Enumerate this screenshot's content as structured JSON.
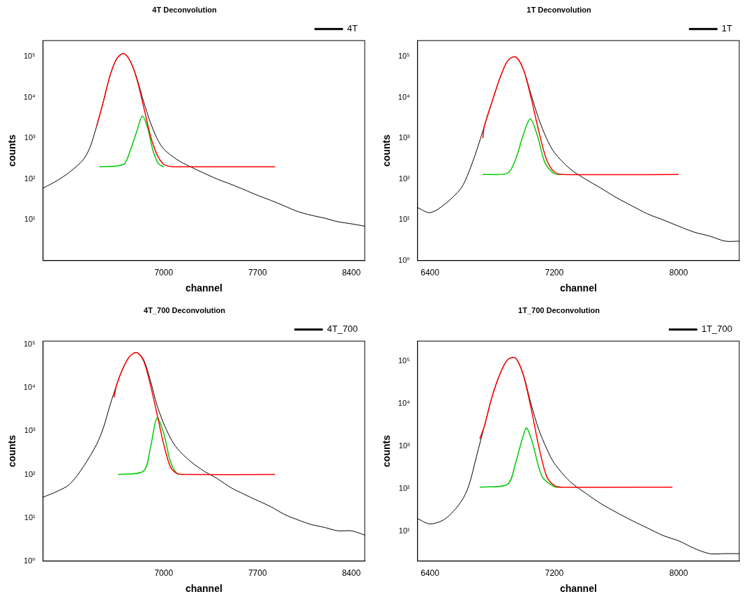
{
  "chart_data": [
    {
      "type": "line",
      "title": "4T Deconvolution",
      "x_label": "channel",
      "y_label": "counts",
      "xlim": [
        6100,
        8500
      ],
      "xticks": [
        7000,
        7700,
        8400
      ],
      "ylim": [
        1,
        250000
      ],
      "yticks": [
        {
          "value": 10,
          "label": "10¹"
        },
        {
          "value": 100,
          "label": "10²"
        },
        {
          "value": 1000,
          "label": "10³"
        },
        {
          "value": 10000,
          "label": "10⁴"
        },
        {
          "value": 100000,
          "label": "10⁵"
        }
      ],
      "log": "y",
      "grid": false,
      "legend": "top-right",
      "series": [
        {
          "name": "4T",
          "color": "#000000",
          "x": [
            6100,
            6200,
            6300,
            6400,
            6450,
            6500,
            6550,
            6600,
            6650,
            6700,
            6750,
            6800,
            6850,
            6900,
            6950,
            7000,
            7100,
            7200,
            7300,
            7400,
            7500,
            7600,
            7700,
            7800,
            7900,
            8000,
            8100,
            8200,
            8300,
            8400,
            8500
          ],
          "values": [
            60,
            90,
            150,
            300,
            600,
            2000,
            8000,
            35000,
            90000,
            120000,
            80000,
            30000,
            8000,
            2500,
            1000,
            550,
            300,
            200,
            140,
            100,
            75,
            55,
            40,
            30,
            22,
            16,
            13,
            11,
            9,
            8,
            7
          ]
        },
        {
          "color": "#ff0000",
          "x": [
            6500,
            6550,
            6600,
            6650,
            6700,
            6750,
            6800,
            6850,
            6900,
            6950,
            7000,
            7050,
            7100,
            7830
          ],
          "values": [
            2000,
            8000,
            35000,
            90000,
            120000,
            78000,
            28000,
            6000,
            1200,
            400,
            230,
            205,
            200,
            200
          ]
        },
        {
          "color": "#00cc00",
          "x": [
            6520,
            6700,
            6750,
            6800,
            6840,
            6880,
            6920,
            6960,
            7000
          ],
          "values": [
            200,
            230,
            500,
            1500,
            3500,
            1800,
            500,
            240,
            200
          ]
        }
      ]
    },
    {
      "type": "line",
      "title": "1T Deconvolution",
      "x_label": "channel",
      "y_label": "counts",
      "xlim": [
        6320,
        8390
      ],
      "xticks": [
        6400,
        7200,
        8000
      ],
      "ylim": [
        1,
        250000
      ],
      "yticks": [
        {
          "value": 1,
          "label": "10⁰"
        },
        {
          "value": 10,
          "label": "10¹"
        },
        {
          "value": 100,
          "label": "10²"
        },
        {
          "value": 1000,
          "label": "10³"
        },
        {
          "value": 10000,
          "label": "10⁴"
        },
        {
          "value": 100000,
          "label": "10⁵"
        }
      ],
      "log": "y",
      "grid": false,
      "legend": "top-right",
      "series": [
        {
          "name": "1T",
          "color": "#000000",
          "x": [
            6320,
            6400,
            6500,
            6600,
            6650,
            6700,
            6750,
            6800,
            6850,
            6900,
            6950,
            7000,
            7050,
            7100,
            7150,
            7200,
            7300,
            7400,
            7500,
            7600,
            7700,
            7800,
            7900,
            8000,
            8100,
            8200,
            8300,
            8390
          ],
          "values": [
            20,
            15,
            25,
            60,
            150,
            500,
            2000,
            8000,
            30000,
            80000,
            100000,
            50000,
            12000,
            3000,
            1000,
            450,
            180,
            100,
            60,
            35,
            22,
            14,
            10,
            7,
            5,
            4,
            3,
            3
          ]
        },
        {
          "color": "#ff0000",
          "x": [
            6740,
            6750,
            6800,
            6850,
            6900,
            6950,
            7000,
            7050,
            7100,
            7150,
            7200,
            7250,
            8000
          ],
          "values": [
            1000,
            2000,
            8000,
            30000,
            80000,
            100000,
            50000,
            10000,
            1500,
            300,
            150,
            130,
            130
          ]
        },
        {
          "color": "#00cc00",
          "x": [
            6740,
            6900,
            6950,
            7000,
            7045,
            7090,
            7140,
            7200,
            7250
          ],
          "values": [
            130,
            140,
            300,
            1200,
            3000,
            1200,
            250,
            135,
            130
          ]
        }
      ]
    },
    {
      "type": "line",
      "title": "4T_700 Deconvolution",
      "x_label": "channel",
      "y_label": "counts",
      "xlim": [
        6100,
        8500
      ],
      "xticks": [
        7000,
        7700,
        8400
      ],
      "ylim": [
        1,
        120000
      ],
      "yticks": [
        {
          "value": 1,
          "label": "10⁰"
        },
        {
          "value": 10,
          "label": "10¹"
        },
        {
          "value": 100,
          "label": "10²"
        },
        {
          "value": 1000,
          "label": "10³"
        },
        {
          "value": 10000,
          "label": "10⁴"
        },
        {
          "value": 100000,
          "label": "10⁵"
        }
      ],
      "log": "y",
      "grid": false,
      "legend": "top-right",
      "series": [
        {
          "name": "4T_700",
          "color": "#000000",
          "x": [
            6100,
            6200,
            6300,
            6400,
            6500,
            6550,
            6600,
            6650,
            6700,
            6750,
            6800,
            6850,
            6900,
            6950,
            7000,
            7050,
            7100,
            7200,
            7300,
            7400,
            7500,
            7600,
            7700,
            7800,
            7900,
            8000,
            8100,
            8200,
            8300,
            8400,
            8500
          ],
          "values": [
            30,
            40,
            60,
            150,
            500,
            1200,
            4000,
            12000,
            30000,
            55000,
            65000,
            45000,
            15000,
            4000,
            1500,
            700,
            400,
            200,
            120,
            80,
            50,
            35,
            25,
            18,
            12,
            9,
            7,
            6,
            5,
            5,
            4
          ]
        },
        {
          "color": "#ff0000",
          "x": [
            6630,
            6650,
            6700,
            6750,
            6800,
            6850,
            6900,
            6950,
            7000,
            7050,
            7100,
            7150,
            7830
          ],
          "values": [
            6000,
            12000,
            30000,
            55000,
            65000,
            42000,
            12000,
            2500,
            500,
            150,
            105,
            100,
            100
          ]
        },
        {
          "color": "#00cc00",
          "x": [
            6660,
            6850,
            6900,
            6950,
            7000,
            7050,
            7100,
            7150
          ],
          "values": [
            100,
            120,
            400,
            2000,
            900,
            200,
            105,
            100
          ]
        }
      ]
    },
    {
      "type": "line",
      "title": "1T_700 Deconvolution",
      "x_label": "channel",
      "y_label": "counts",
      "xlim": [
        6320,
        8390
      ],
      "xticks": [
        6400,
        7200,
        8000
      ],
      "ylim": [
        2,
        300000
      ],
      "yticks": [
        {
          "value": 10,
          "label": "10¹"
        },
        {
          "value": 100,
          "label": "10²"
        },
        {
          "value": 1000,
          "label": "10³"
        },
        {
          "value": 10000,
          "label": "10⁴"
        },
        {
          "value": 100000,
          "label": "10⁵"
        }
      ],
      "log": "y",
      "grid": false,
      "legend": "top-right",
      "series": [
        {
          "name": "1T_700",
          "color": "#000000",
          "x": [
            6320,
            6400,
            6500,
            6600,
            6650,
            6700,
            6750,
            6800,
            6850,
            6900,
            6950,
            7000,
            7050,
            7100,
            7150,
            7200,
            7300,
            7400,
            7500,
            7600,
            7700,
            7800,
            7900,
            8000,
            8100,
            8200,
            8300,
            8390
          ],
          "values": [
            20,
            15,
            20,
            50,
            120,
            600,
            3000,
            15000,
            50000,
            110000,
            120000,
            50000,
            10000,
            2500,
            900,
            400,
            150,
            80,
            45,
            28,
            18,
            12,
            8,
            6,
            4,
            3,
            3,
            3
          ]
        },
        {
          "color": "#ff0000",
          "x": [
            6720,
            6750,
            6800,
            6850,
            6900,
            6950,
            7000,
            7050,
            7100,
            7150,
            7200,
            7250,
            7960
          ],
          "values": [
            1500,
            3000,
            15000,
            50000,
            110000,
            120000,
            48000,
            8000,
            1000,
            200,
            120,
            110,
            110
          ]
        },
        {
          "color": "#00cc00",
          "x": [
            6720,
            6900,
            6950,
            7000,
            7022,
            7060,
            7120,
            7200,
            7250
          ],
          "values": [
            110,
            130,
            400,
            1800,
            2700,
            1200,
            200,
            112,
            110
          ]
        }
      ]
    }
  ]
}
